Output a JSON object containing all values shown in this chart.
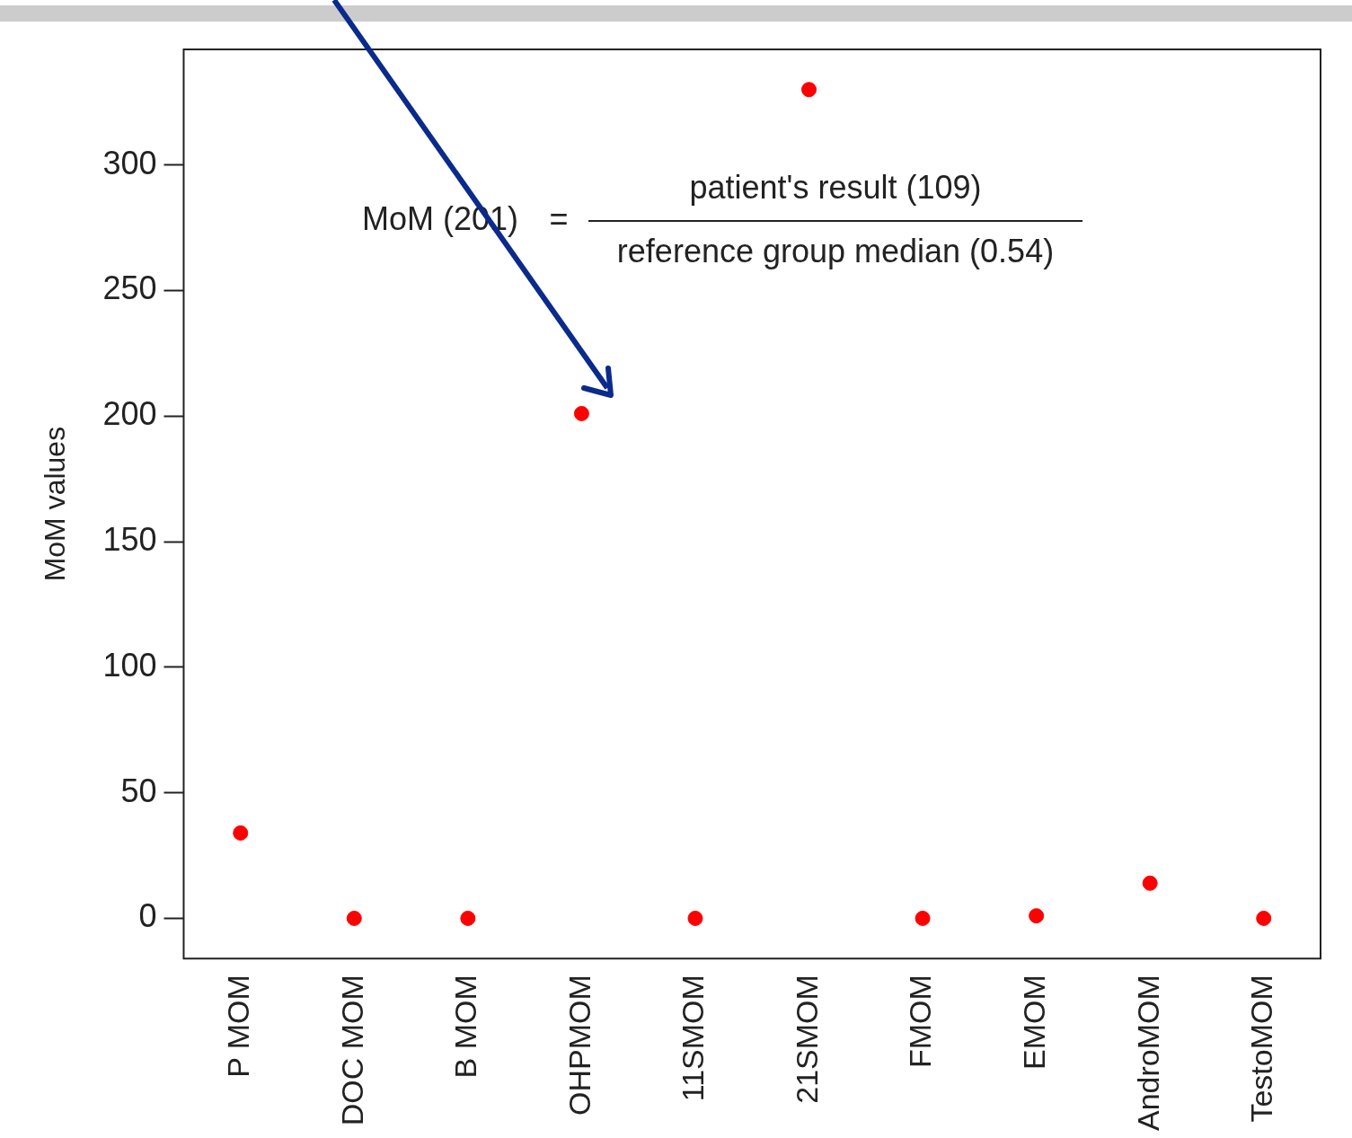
{
  "chart_data": {
    "type": "scatter",
    "ylabel": "MoM values",
    "categories": [
      "P MOM",
      "DOC MOM",
      "B MOM",
      "OHPMOM",
      "11SMOM",
      "21SMOM",
      "FMOM",
      "EMOM",
      "AndroMOM",
      "TestoMOM"
    ],
    "series": [
      {
        "color": "#ff0000",
        "values": [
          34,
          0,
          0,
          201,
          0,
          330,
          0,
          1,
          14,
          0
        ]
      }
    ],
    "ylim": [
      -16,
      346
    ],
    "yticks": [
      0,
      50,
      100,
      150,
      200,
      250,
      300
    ],
    "grid": false,
    "legend": false,
    "marker": "circle",
    "annotations": [
      "MoM (201)",
      "=",
      "patient's result (109)",
      "reference group median (0.54)"
    ]
  }
}
